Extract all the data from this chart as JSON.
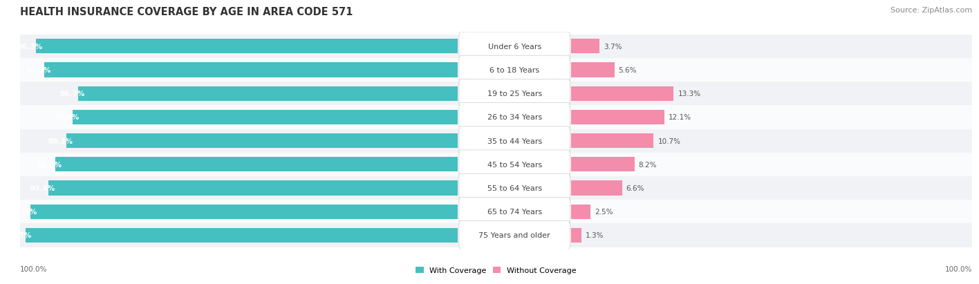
{
  "title": "HEALTH INSURANCE COVERAGE BY AGE IN AREA CODE 571",
  "source": "Source: ZipAtlas.com",
  "categories": [
    "Under 6 Years",
    "6 to 18 Years",
    "19 to 25 Years",
    "26 to 34 Years",
    "35 to 44 Years",
    "45 to 54 Years",
    "55 to 64 Years",
    "65 to 74 Years",
    "75 Years and older"
  ],
  "with_coverage": [
    96.3,
    94.4,
    86.7,
    87.9,
    89.3,
    91.8,
    93.4,
    97.5,
    98.7
  ],
  "without_coverage": [
    3.7,
    5.6,
    13.3,
    12.1,
    10.7,
    8.2,
    6.6,
    2.5,
    1.3
  ],
  "color_with": "#45BFC0",
  "color_without": "#F48CAB",
  "color_with_light": "#A8DEDE",
  "title_fontsize": 10.5,
  "source_fontsize": 8,
  "label_fontsize": 8,
  "bar_label_fontsize": 7.5,
  "legend_fontsize": 8,
  "footer_fontsize": 7.5,
  "background_color": "#FFFFFF",
  "row_color_odd": "#F0F2F5",
  "row_color_even": "#FAFBFC"
}
